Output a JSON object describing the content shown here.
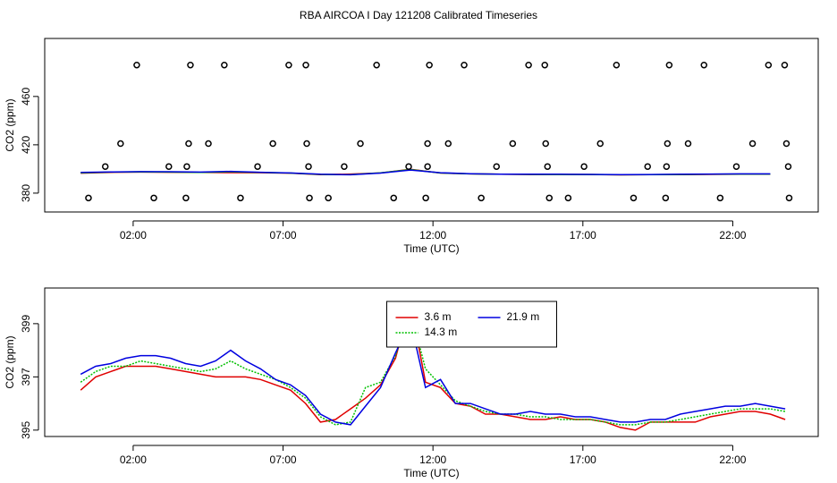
{
  "title": "RBA AIRCOA I  Day 121208  Calibrated Timeseries",
  "chart_data": [
    {
      "type": "line",
      "x_label": "Time (UTC)",
      "y_label": "CO2 (ppm)",
      "xlim": [
        -0.95,
        24.85
      ],
      "ylim": [
        364.4,
        508
      ],
      "xticks": [
        {
          "value": 2,
          "label": "02:00"
        },
        {
          "value": 7,
          "label": "07:00"
        },
        {
          "value": 12,
          "label": "12:00"
        },
        {
          "value": 17,
          "label": "17:00"
        },
        {
          "value": 22,
          "label": "22:00"
        }
      ],
      "yticks": [
        380,
        420,
        460
      ],
      "x": [
        0.25,
        1.25,
        2.25,
        3.25,
        4.25,
        5.25,
        6.25,
        7.25,
        8.25,
        9.25,
        10.25,
        11.25,
        12.25,
        13.25,
        14.25,
        15.25,
        16.25,
        17.25,
        18.25,
        19.25,
        20.25,
        21.25,
        22.25,
        23.25
      ],
      "series": [
        {
          "color": "#e00000",
          "values": [
            396.5,
            397.2,
            397.4,
            397.3,
            397.1,
            397.0,
            396.9,
            396.5,
            395.3,
            395.8,
            396.7,
            399.8,
            396.6,
            395.9,
            395.6,
            395.4,
            395.5,
            395.4,
            395.1,
            395.3,
            395.3,
            395.5,
            395.7,
            395.6
          ]
        },
        {
          "color": "#00c000",
          "values": [
            396.8,
            397.4,
            397.6,
            397.4,
            397.2,
            397.6,
            397.1,
            396.6,
            395.5,
            395.3,
            396.8,
            399.5,
            396.7,
            395.9,
            395.6,
            395.5,
            395.4,
            395.4,
            395.2,
            395.3,
            395.4,
            395.6,
            395.8,
            395.8
          ]
        },
        {
          "color": "#0000e0",
          "values": [
            397.1,
            397.5,
            397.8,
            397.7,
            397.4,
            398.0,
            397.3,
            396.7,
            395.6,
            395.2,
            396.6,
            399.1,
            396.9,
            396.0,
            395.6,
            395.7,
            395.6,
            395.5,
            395.3,
            395.4,
            395.6,
            395.8,
            395.9,
            395.9
          ]
        }
      ],
      "points": {
        "color": "#000000",
        "x": [
          2.12,
          3.91,
          5.04,
          7.19,
          7.76,
          10.12,
          11.88,
          13.04,
          15.19,
          15.73,
          18.12,
          19.88,
          21.04,
          23.19,
          23.73,
          1.58,
          3.85,
          4.51,
          6.66,
          7.79,
          9.58,
          11.82,
          12.51,
          14.66,
          15.76,
          17.58,
          19.82,
          20.51,
          22.66,
          23.79,
          1.07,
          3.19,
          3.79,
          6.15,
          7.85,
          9.04,
          11.19,
          11.82,
          14.12,
          15.82,
          17.04,
          19.16,
          19.79,
          22.12,
          23.85,
          0.51,
          2.69,
          3.76,
          5.58,
          7.88,
          8.51,
          10.69,
          11.76,
          13.61,
          15.88,
          16.51,
          18.69,
          19.76,
          21.58,
          23.88
        ],
        "values": [
          486,
          486,
          486,
          486,
          486,
          486,
          486,
          486,
          486,
          486,
          486,
          486,
          486,
          486,
          486,
          421,
          421,
          421,
          421,
          421,
          421,
          421,
          421,
          421,
          421,
          421,
          421,
          421,
          421,
          421,
          402,
          402,
          402,
          402,
          402,
          402,
          402,
          402,
          402,
          402,
          402,
          402,
          402,
          402,
          402,
          376,
          376,
          376,
          376,
          376,
          376,
          376,
          376,
          376,
          376,
          376,
          376,
          376,
          376,
          376
        ]
      }
    },
    {
      "type": "line",
      "x_label": "Time (UTC)",
      "y_label": "CO2 (ppm)",
      "legend": "top-center",
      "xlim": [
        -0.95,
        24.85
      ],
      "ylim": [
        394.76,
        400.34
      ],
      "xticks": [
        {
          "value": 2,
          "label": "02:00"
        },
        {
          "value": 7,
          "label": "07:00"
        },
        {
          "value": 12,
          "label": "12:00"
        },
        {
          "value": 17,
          "label": "17:00"
        },
        {
          "value": 22,
          "label": "22:00"
        }
      ],
      "yticks": [
        395,
        397,
        399
      ],
      "x": [
        0.25,
        0.75,
        1.25,
        1.75,
        2.25,
        2.75,
        3.25,
        3.75,
        4.25,
        4.75,
        5.25,
        5.75,
        6.25,
        6.75,
        7.25,
        7.75,
        8.25,
        8.75,
        9.25,
        9.75,
        10.25,
        10.75,
        11.25,
        11.75,
        12.25,
        12.75,
        13.25,
        13.75,
        14.25,
        14.75,
        15.25,
        15.75,
        16.25,
        16.75,
        17.25,
        17.75,
        18.25,
        18.75,
        19.25,
        19.75,
        20.25,
        20.75,
        21.25,
        21.75,
        22.25,
        22.75,
        23.25,
        23.75
      ],
      "series": [
        {
          "name": "3.6 m",
          "color": "#e00000",
          "linestyle": "solid",
          "values": [
            396.5,
            397.0,
            397.2,
            397.4,
            397.4,
            397.4,
            397.3,
            397.2,
            397.1,
            397.0,
            397.0,
            397.0,
            396.9,
            396.7,
            396.5,
            396.0,
            395.3,
            395.4,
            395.8,
            396.2,
            396.7,
            397.7,
            399.8,
            396.8,
            396.6,
            396.0,
            395.9,
            395.6,
            395.6,
            395.5,
            395.4,
            395.4,
            395.5,
            395.4,
            395.4,
            395.3,
            395.1,
            395.0,
            395.3,
            395.3,
            395.3,
            395.3,
            395.5,
            395.6,
            395.7,
            395.7,
            395.6,
            395.4
          ]
        },
        {
          "name": "14.3 m",
          "color": "#00c000",
          "linestyle": "dotted",
          "values": [
            396.8,
            397.2,
            397.4,
            397.4,
            397.6,
            397.5,
            397.4,
            397.3,
            397.2,
            397.3,
            397.6,
            397.3,
            397.1,
            396.9,
            396.6,
            396.2,
            395.5,
            395.2,
            395.3,
            396.6,
            396.8,
            397.8,
            399.5,
            397.3,
            396.7,
            396.1,
            395.9,
            395.7,
            395.6,
            395.6,
            395.5,
            395.5,
            395.4,
            395.4,
            395.4,
            395.3,
            395.2,
            395.2,
            395.3,
            395.3,
            395.4,
            395.5,
            395.6,
            395.7,
            395.8,
            395.8,
            395.8,
            395.7
          ]
        },
        {
          "name": "21.9 m",
          "color": "#0000e0",
          "linestyle": "solid",
          "values": [
            397.1,
            397.4,
            397.5,
            397.7,
            397.8,
            397.8,
            397.7,
            397.5,
            397.4,
            397.6,
            398.0,
            397.6,
            397.3,
            396.9,
            396.7,
            396.3,
            395.6,
            395.3,
            395.2,
            395.9,
            396.6,
            397.9,
            399.1,
            396.6,
            396.9,
            396.0,
            396.0,
            395.8,
            395.6,
            395.6,
            395.7,
            395.6,
            395.6,
            395.5,
            395.5,
            395.4,
            395.3,
            395.3,
            395.4,
            395.4,
            395.6,
            395.7,
            395.8,
            395.9,
            395.9,
            396.0,
            395.9,
            395.8
          ]
        }
      ]
    }
  ]
}
